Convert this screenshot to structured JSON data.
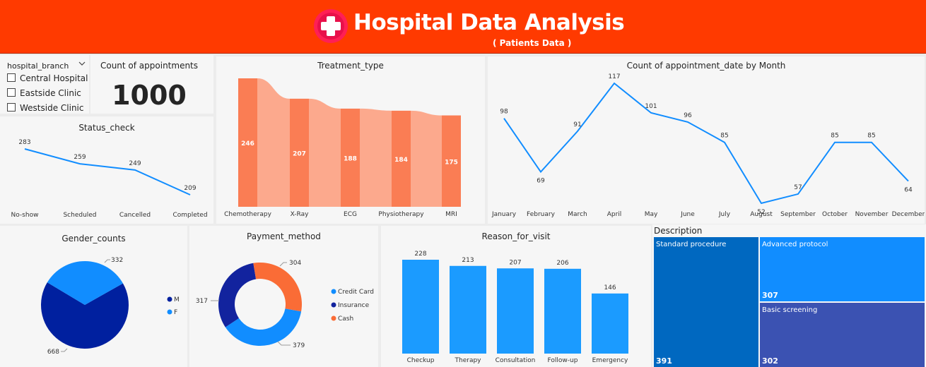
{
  "header": {
    "title": "Hospital Data Analysis",
    "subtitle": "( Patients Data )"
  },
  "slicer": {
    "title": "hospital_branch",
    "options": [
      "Central Hospital",
      "Eastside Clinic",
      "Westside Clinic"
    ]
  },
  "kpi": {
    "label": "Count of appointments",
    "value": "1000"
  },
  "status_title": "Status_check",
  "treatment_title": "Treatment_type",
  "month_title": "Count of appointment_date by Month",
  "gender_title": "Gender_counts",
  "payment_title": "Payment_method",
  "reason_title": "Reason_for_visit",
  "description_title": "Description",
  "colors": {
    "header": "#ff3a00",
    "line": "#118dff",
    "treatment_bar": "#fa7d54",
    "treatment_ribbon": "#fca98d",
    "gender_m": "#00209f",
    "gender_f": "#118dff",
    "payment_credit": "#118dff",
    "payment_insurance": "#12239e",
    "payment_cash": "#fa6c36",
    "reason_bar": "#1b9bff",
    "tile_standard": "#0068c0",
    "tile_advanced": "#118dff",
    "tile_basic": "#3b52b2"
  },
  "chart_data": [
    {
      "id": "status",
      "type": "line",
      "title": "Status_check",
      "categories": [
        "No-show",
        "Scheduled",
        "Cancelled",
        "Completed"
      ],
      "values": [
        283,
        259,
        249,
        209
      ]
    },
    {
      "id": "treatment",
      "type": "bar",
      "title": "Treatment_type",
      "categories": [
        "Chemotherapy",
        "X-Ray",
        "ECG",
        "Physiotherapy",
        "MRI"
      ],
      "values": [
        246,
        207,
        188,
        184,
        175
      ]
    },
    {
      "id": "month",
      "type": "line",
      "title": "Count of appointment_date by Month",
      "categories": [
        "January",
        "February",
        "March",
        "April",
        "May",
        "June",
        "July",
        "August",
        "September",
        "October",
        "November",
        "December"
      ],
      "values": [
        98,
        69,
        91,
        117,
        101,
        96,
        85,
        52,
        57,
        85,
        85,
        64
      ]
    },
    {
      "id": "gender",
      "type": "pie",
      "title": "Gender_counts",
      "legend": "right",
      "categories": [
        "M",
        "F"
      ],
      "values": [
        668,
        332
      ]
    },
    {
      "id": "payment",
      "type": "pie",
      "title": "Payment_method",
      "legend": "right",
      "categories": [
        "Credit Card",
        "Insurance",
        "Cash"
      ],
      "values": [
        379,
        317,
        304
      ]
    },
    {
      "id": "reason",
      "type": "bar",
      "title": "Reason_for_visit",
      "categories": [
        "Checkup",
        "Therapy",
        "Consultation",
        "Follow-up",
        "Emergency"
      ],
      "values": [
        228,
        213,
        207,
        206,
        146
      ]
    },
    {
      "id": "description",
      "type": "treemap",
      "title": "Description",
      "categories": [
        "Standard procedure",
        "Advanced protocol",
        "Basic screening"
      ],
      "values": [
        391,
        307,
        302
      ]
    }
  ]
}
